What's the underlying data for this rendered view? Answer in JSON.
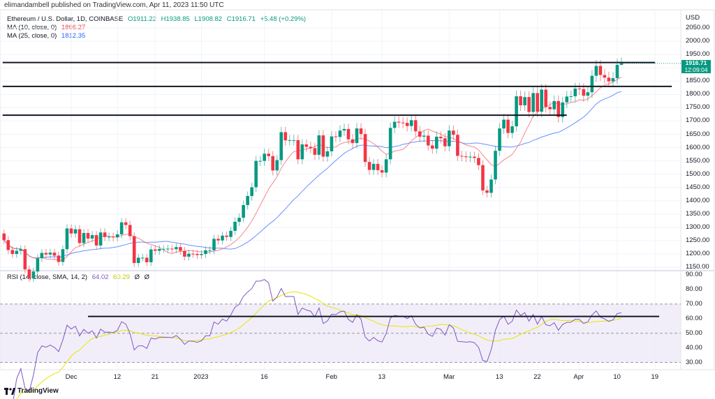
{
  "header": {
    "published": "elimandambell published on TradingView.com, Apr 11, 2023 11:50 UTC"
  },
  "legend": {
    "symbol": "Ethereum / U.S. Dollar, 1D, COINBASE",
    "open": "O1911.22",
    "high": "H1938.85",
    "low": "L1908.82",
    "close": "C1916.71",
    "change": "+5.48 (+0.29%)",
    "ma10_label": "MA (10, close, 0)",
    "ma10_value": "1866.27",
    "ma25_label": "MA (25, close, 0)",
    "ma25_value": "1812.35",
    "rsi_label": "RSI (14, close, SMA, 14, 2)",
    "rsi_value": "64.02",
    "rsi_ma_value": "60.29",
    "rsi_extra1": "Ø",
    "rsi_extra2": "Ø"
  },
  "price_axis": {
    "currency": "USD",
    "ticks": [
      "2050.00",
      "2000.00",
      "1950.00",
      "1850.00",
      "1800.00",
      "1750.00",
      "1700.00",
      "1650.00",
      "1600.00",
      "1550.00",
      "1500.00",
      "1450.00",
      "1400.00",
      "1350.00",
      "1300.00",
      "1250.00",
      "1200.00",
      "1150.00"
    ],
    "last_price": "1916.71",
    "countdown": "12:09:04"
  },
  "rsi_axis": {
    "ticks": [
      "90.00",
      "80.00",
      "70.00",
      "60.00",
      "50.00",
      "40.00",
      "30.00"
    ]
  },
  "time_axis": {
    "ticks": [
      {
        "label": "Dec",
        "date": "2022-12-01"
      },
      {
        "label": "12",
        "date": "2022-12-12"
      },
      {
        "label": "21",
        "date": "2022-12-21"
      },
      {
        "label": "2023",
        "date": "2023-01-01"
      },
      {
        "label": "16",
        "date": "2023-01-16"
      },
      {
        "label": "Feb",
        "date": "2023-02-01"
      },
      {
        "label": "13",
        "date": "2023-02-13"
      },
      {
        "label": "Mar",
        "date": "2023-03-01"
      },
      {
        "label": "13",
        "date": "2023-03-13"
      },
      {
        "label": "22",
        "date": "2023-03-22"
      },
      {
        "label": "Apr",
        "date": "2023-04-01"
      },
      {
        "label": "10",
        "date": "2023-04-10"
      },
      {
        "label": "19",
        "date": "2023-04-19"
      }
    ]
  },
  "branding": {
    "logo_text": "TradingView"
  },
  "colors": {
    "up": "#089981",
    "down": "#f23645",
    "ma10": "#f7525f",
    "ma25": "#2962ff",
    "rsi": "#7e57c2",
    "rsi_ma": "#e6e600",
    "band": "#ede7f6",
    "lines": "#131722"
  },
  "chart_data": {
    "type": "candlestick",
    "start_date": "2022-11-15",
    "interval": "1D",
    "close": [
      1252,
      1215,
      1200,
      1212,
      1218,
      1142,
      1108,
      1134,
      1184,
      1204,
      1198,
      1205,
      1194,
      1170,
      1218,
      1296,
      1277,
      1293,
      1241,
      1279,
      1258,
      1271,
      1232,
      1281,
      1264,
      1265,
      1263,
      1274,
      1319,
      1309,
      1267,
      1166,
      1186,
      1186,
      1169,
      1217,
      1212,
      1219,
      1219,
      1220,
      1218,
      1226,
      1212,
      1190,
      1201,
      1200,
      1196,
      1200,
      1214,
      1214,
      1257,
      1251,
      1269,
      1264,
      1287,
      1321,
      1336,
      1384,
      1418,
      1451,
      1550,
      1550,
      1577,
      1568,
      1514,
      1553,
      1658,
      1627,
      1628,
      1628,
      1556,
      1612,
      1603,
      1598,
      1573,
      1646,
      1566,
      1586,
      1642,
      1640,
      1664,
      1670,
      1631,
      1617,
      1672,
      1651,
      1546,
      1516,
      1539,
      1515,
      1506,
      1556,
      1674,
      1697,
      1694,
      1693,
      1681,
      1703,
      1661,
      1641,
      1645,
      1608,
      1596,
      1641,
      1635,
      1605,
      1664,
      1648,
      1569,
      1567,
      1564,
      1566,
      1561,
      1534,
      1439,
      1430,
      1480,
      1588,
      1672,
      1705,
      1655,
      1680,
      1793,
      1759,
      1790,
      1734,
      1805,
      1735,
      1818,
      1753,
      1744,
      1775,
      1715,
      1770,
      1792,
      1793,
      1822,
      1820,
      1795,
      1808,
      1870,
      1907,
      1873,
      1863,
      1849,
      1861,
      1911.22,
      1916.71
    ],
    "last_open": 1911.22,
    "last_high": 1938.85,
    "last_low": 1908.82,
    "price_range": [
      1130,
      2080
    ],
    "rsi_range": [
      25,
      95
    ],
    "rsi_bands": [
      30,
      70
    ],
    "horizontal_lines": [
      {
        "price": 1920,
        "from": "2022-11-15",
        "to": "2023-04-19"
      },
      {
        "price": 1830,
        "from": "2022-11-15",
        "to": "2023-04-23"
      },
      {
        "price": 1722,
        "from": "2022-11-15",
        "to": "2023-03-29"
      }
    ],
    "rsi_line": {
      "value": 61.5,
      "from": "2022-12-05",
      "to": "2023-04-20"
    },
    "indicators": [
      "MA 10",
      "MA 25",
      "RSI 14"
    ]
  }
}
